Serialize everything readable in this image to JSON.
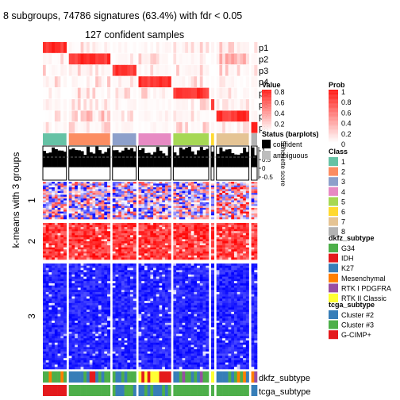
{
  "title": "8 subgroups, 74786 signatures (63.4%) with fdr < 0.05",
  "subtitle": "127 confident samples",
  "ylabel": "k-means with 3 groups",
  "chart_data": {
    "type": "heatmap",
    "title": "8 subgroups, 74786 signatures (63.4%) with fdr < 0.05",
    "subtitle": "127 confident samples",
    "ylabel": "k-means with 3 groups",
    "prob_tracks": [
      "p1",
      "p2",
      "p3",
      "p4",
      "p5",
      "p6",
      "p7",
      "p8"
    ],
    "class_counts": [
      8,
      14,
      8,
      11,
      12,
      1,
      11,
      2
    ],
    "row_groups": [
      {
        "label": "1",
        "rows": 20
      },
      {
        "label": "2",
        "rows": 18
      },
      {
        "label": "3",
        "rows": 48
      }
    ],
    "annotations": [
      "dkfz_subtype",
      "tcga_subtype"
    ],
    "silhouette_ticks": [
      "1",
      "0.5",
      "0",
      "-0.5"
    ],
    "silhouette_label": "Silhouette score",
    "legends": {
      "value": {
        "title": "Value",
        "ticks": [
          "0.8",
          "0.6",
          "0.4",
          "0.2"
        ]
      },
      "prob": {
        "title": "Prob",
        "ticks": [
          "1",
          "0.8",
          "0.6",
          "0.4",
          "0.2",
          "0"
        ]
      },
      "status": {
        "title": "Status (barplots)",
        "items": [
          "confident",
          "ambiguous"
        ]
      },
      "class": {
        "title": "Class",
        "items": [
          {
            "label": "1",
            "color": "#66C2A5"
          },
          {
            "label": "2",
            "color": "#FC8D62"
          },
          {
            "label": "3",
            "color": "#8DA0CB"
          },
          {
            "label": "4",
            "color": "#E78AC3"
          },
          {
            "label": "5",
            "color": "#A6D854"
          },
          {
            "label": "6",
            "color": "#FFD92F"
          },
          {
            "label": "7",
            "color": "#E5C494"
          },
          {
            "label": "8",
            "color": "#B3B3B3"
          }
        ]
      },
      "dkfz": {
        "title": "dkfz_subtype",
        "items": [
          {
            "label": "G34",
            "color": "#4DAF4A"
          },
          {
            "label": "IDH",
            "color": "#E41A1C"
          },
          {
            "label": "K27",
            "color": "#377EB8"
          },
          {
            "label": "Mesenchymal",
            "color": "#FF7F00"
          },
          {
            "label": "RTK I PDGFRA",
            "color": "#984EA3"
          },
          {
            "label": "RTK II Classic",
            "color": "#FFFF33"
          }
        ]
      },
      "tcga": {
        "title": "tcga_subtype",
        "items": [
          {
            "label": "Cluster #2",
            "color": "#377EB8"
          },
          {
            "label": "Cluster #3",
            "color": "#4DAF4A"
          },
          {
            "label": "G-CIMP+",
            "color": "#E41A1C"
          }
        ]
      }
    }
  }
}
